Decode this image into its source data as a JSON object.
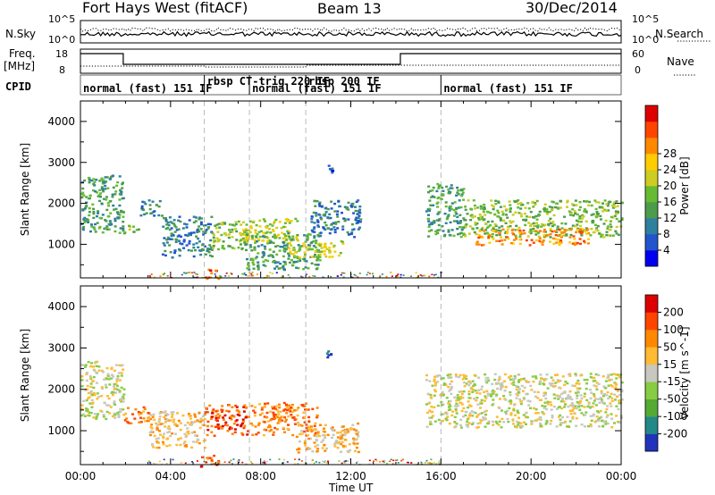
{
  "header": {
    "title": "Fort Hays West (fitACF)",
    "beam": "Beam 13",
    "date": "30/Dec/2014"
  },
  "left_labels": {
    "nsky": "N.Sky",
    "nsky_ticks": [
      "10^5",
      "10^0"
    ],
    "freq_line1": "Freq.",
    "freq_line2": "[MHz]",
    "freq_ticks": [
      "18",
      "8"
    ],
    "cpid": "CPID"
  },
  "right_labels": {
    "nsearch": "N.Search",
    "nsearch_ticks": [
      "10^5",
      "10^0"
    ],
    "nave": "Nave",
    "nave_ticks": [
      "60",
      "0"
    ]
  },
  "cpid_segments": [
    {
      "start_h": 0.0,
      "end_h": 5.5,
      "label": "normal (fast) 151 IF"
    },
    {
      "start_h": 5.5,
      "end_h": 7.5,
      "label": "rbsp CT-trig 220 IF"
    },
    {
      "start_h": 7.5,
      "end_h": 10.0,
      "label": "normal (fast) 151 IF"
    },
    {
      "start_h": 10.0,
      "end_h": 16.0,
      "label": "rbsp 200 IF"
    },
    {
      "start_h": 16.0,
      "end_h": 24.0,
      "label": "normal (fast) 151 IF"
    }
  ],
  "chart_data": [
    {
      "type": "heatmap",
      "panel": "power",
      "ylabel": "Slant Range [km]",
      "xlabel": "",
      "xlim_hours": [
        0,
        24
      ],
      "ylim": [
        180,
        4500
      ],
      "yticks": [
        "1000",
        "2000",
        "3000",
        "4000"
      ],
      "xticks": [
        "00:00",
        "04:00",
        "08:00",
        "12:00",
        "16:00",
        "20:00",
        "00:00"
      ],
      "colorbar": {
        "label": "Power [dB]",
        "ticks": [
          "4",
          "8",
          "12",
          "16",
          "20",
          "24",
          "28"
        ],
        "colors": [
          "#0000ee",
          "#2255cc",
          "#2f7f9f",
          "#4c9c4c",
          "#66bb33",
          "#cccc22",
          "#ffcc00",
          "#ff8800",
          "#ff4400",
          "#dd0000"
        ]
      },
      "regions": [
        {
          "t0": 0.0,
          "t1": 1.9,
          "r0": 1300,
          "r1": 2700,
          "level": 3
        },
        {
          "t0": 1.9,
          "t1": 2.6,
          "r0": 1280,
          "r1": 1500,
          "level": 4
        },
        {
          "t0": 2.6,
          "t1": 3.6,
          "r0": 1700,
          "r1": 2100,
          "level": 2
        },
        {
          "t0": 3.6,
          "t1": 5.8,
          "r0": 700,
          "r1": 1700,
          "level": 2
        },
        {
          "t0": 5.5,
          "t1": 6.1,
          "r0": 150,
          "r1": 420,
          "level": 8
        },
        {
          "t0": 5.8,
          "t1": 7.4,
          "r0": 900,
          "r1": 1600,
          "level": 4
        },
        {
          "t0": 7.0,
          "t1": 9.6,
          "r0": 1050,
          "r1": 1650,
          "level": 5
        },
        {
          "t0": 7.3,
          "t1": 10.6,
          "r0": 400,
          "r1": 1300,
          "level": 3
        },
        {
          "t0": 9.2,
          "t1": 11.6,
          "r0": 700,
          "r1": 1100,
          "level": 5
        },
        {
          "t0": 10.2,
          "t1": 12.4,
          "r0": 1200,
          "r1": 2100,
          "level": 2
        },
        {
          "t0": 10.9,
          "t1": 11.2,
          "r0": 2750,
          "r1": 2950,
          "level": 1
        },
        {
          "t0": 15.3,
          "t1": 17.0,
          "r0": 1200,
          "r1": 2500,
          "level": 3
        },
        {
          "t0": 17.0,
          "t1": 24.0,
          "r0": 1200,
          "r1": 2100,
          "level": 4
        },
        {
          "t0": 17.5,
          "t1": 22.5,
          "r0": 1000,
          "r1": 1400,
          "level": 7
        }
      ]
    },
    {
      "type": "heatmap",
      "panel": "velocity",
      "ylabel": "Slant Range [km]",
      "xlabel": "Time UT",
      "xlim_hours": [
        0,
        24
      ],
      "ylim": [
        180,
        4500
      ],
      "yticks": [
        "1000",
        "2000",
        "3000",
        "4000"
      ],
      "xticks": [
        "00:00",
        "04:00",
        "08:00",
        "12:00",
        "16:00",
        "20:00",
        "00:00"
      ],
      "colorbar": {
        "label": "Velocity [m s^-1]",
        "ticks": [
          "200",
          "100",
          "50",
          "15",
          "-15",
          "-50",
          "-100",
          "-200"
        ],
        "colors": [
          "#2233bb",
          "#228888",
          "#55aa33",
          "#88cc44",
          "#c8c8c0",
          "#ffbb33",
          "#ff8800",
          "#ff4400",
          "#dd0000"
        ]
      },
      "regions": [
        {
          "t0": 0.0,
          "t1": 1.9,
          "r0": 1300,
          "r1": 2700,
          "level": 4
        },
        {
          "t0": 1.9,
          "t1": 3.0,
          "r0": 1200,
          "r1": 1600,
          "level": 6
        },
        {
          "t0": 3.0,
          "t1": 5.5,
          "r0": 600,
          "r1": 1500,
          "level": 5
        },
        {
          "t0": 5.5,
          "t1": 7.5,
          "r0": 900,
          "r1": 1650,
          "level": 7
        },
        {
          "t0": 7.5,
          "t1": 10.5,
          "r0": 900,
          "r1": 1700,
          "level": 6
        },
        {
          "t0": 9.5,
          "t1": 12.3,
          "r0": 500,
          "r1": 1200,
          "level": 5
        },
        {
          "t0": 5.3,
          "t1": 6.1,
          "r0": 150,
          "r1": 420,
          "level": 7
        },
        {
          "t0": 10.9,
          "t1": 11.2,
          "r0": 2750,
          "r1": 2950,
          "level": 0
        },
        {
          "t0": 15.3,
          "t1": 24.0,
          "r0": 1100,
          "r1": 2400,
          "level": 4
        }
      ]
    }
  ]
}
